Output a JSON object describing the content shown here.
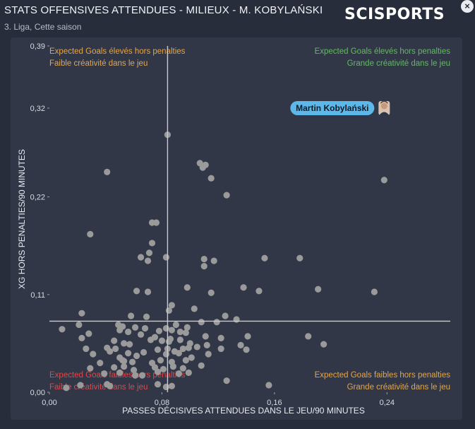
{
  "header": {
    "title": "STATS OFFENSIVES ATTENDUES - MILIEUX - M. KOBYLAŃSKI",
    "subtitle": "3. Liga, Cette saison",
    "brand": "SCISPORTS",
    "close_symbol": "×"
  },
  "colors": {
    "background": "#282d3c",
    "panel": "#313747",
    "point": "#9a9a9a",
    "reference_line": "#c8cad0",
    "highlight_label": "#5bb8e8",
    "top_left": "#e3a64a",
    "top_right": "#66b867",
    "bottom_left": "#e04848",
    "bottom_right": "#e3a64a"
  },
  "chart_data": {
    "type": "scatter",
    "xlabel": "PASSES DÉCISIVES ATTENDUES DANS LE JEU/90 MINUTES",
    "ylabel": "XG HORS PENALTIES/90 MINUTES",
    "xlim": [
      0,
      0.285
    ],
    "ylim": [
      0,
      0.39
    ],
    "x_ticks": [
      0.0,
      0.08,
      0.16,
      0.24
    ],
    "x_tick_labels": [
      "0,00",
      "0,08",
      "0,16",
      "0,24"
    ],
    "y_ticks": [
      0.0,
      0.11,
      0.22,
      0.32,
      0.39
    ],
    "y_tick_labels": [
      "0,00",
      "0,11",
      "0,22",
      "0,32",
      "0,39"
    ],
    "grid": false,
    "reference_lines": {
      "x": 0.084,
      "y": 0.08
    },
    "quadrant_labels": {
      "top_left": [
        "Expected Goals élevés hors penalties",
        "Faible créativité dans le jeu"
      ],
      "top_right": [
        "Expected Goals élevés hors penalties",
        "Grande créativité dans le jeu"
      ],
      "bottom_left": [
        "Expected Goals faibles hors penalties",
        "Faible créativité dans le jeu"
      ],
      "bottom_right": [
        "Expected Goals faibles hors penalties",
        "Grande créativité dans le jeu"
      ]
    },
    "highlight": {
      "name": "Martin Kobylański",
      "x": 0.238,
      "y": 0.32
    },
    "points": [
      [
        0.084,
        0.29
      ],
      [
        0.041,
        0.248
      ],
      [
        0.109,
        0.253
      ],
      [
        0.111,
        0.256
      ],
      [
        0.107,
        0.258
      ],
      [
        0.115,
        0.241
      ],
      [
        0.238,
        0.239
      ],
      [
        0.126,
        0.222
      ],
      [
        0.073,
        0.191
      ],
      [
        0.076,
        0.191
      ],
      [
        0.029,
        0.178
      ],
      [
        0.073,
        0.168
      ],
      [
        0.071,
        0.157
      ],
      [
        0.065,
        0.152
      ],
      [
        0.07,
        0.148
      ],
      [
        0.083,
        0.152
      ],
      [
        0.117,
        0.148
      ],
      [
        0.11,
        0.15
      ],
      [
        0.11,
        0.142
      ],
      [
        0.153,
        0.151
      ],
      [
        0.178,
        0.151
      ],
      [
        0.138,
        0.118
      ],
      [
        0.149,
        0.114
      ],
      [
        0.191,
        0.116
      ],
      [
        0.231,
        0.113
      ],
      [
        0.098,
        0.118
      ],
      [
        0.062,
        0.114
      ],
      [
        0.07,
        0.113
      ],
      [
        0.115,
        0.112
      ],
      [
        0.087,
        0.098
      ],
      [
        0.103,
        0.094
      ],
      [
        0.085,
        0.092
      ],
      [
        0.069,
        0.085
      ],
      [
        0.058,
        0.086
      ],
      [
        0.023,
        0.089
      ],
      [
        0.021,
        0.076
      ],
      [
        0.125,
        0.086
      ],
      [
        0.133,
        0.082
      ],
      [
        0.049,
        0.076
      ],
      [
        0.052,
        0.074
      ],
      [
        0.061,
        0.073
      ],
      [
        0.068,
        0.072
      ],
      [
        0.083,
        0.072
      ],
      [
        0.09,
        0.076
      ],
      [
        0.098,
        0.073
      ],
      [
        0.108,
        0.079
      ],
      [
        0.119,
        0.079
      ],
      [
        0.009,
        0.071
      ],
      [
        0.028,
        0.066
      ],
      [
        0.05,
        0.07
      ],
      [
        0.056,
        0.068
      ],
      [
        0.065,
        0.065
      ],
      [
        0.078,
        0.069
      ],
      [
        0.087,
        0.07
      ],
      [
        0.093,
        0.068
      ],
      [
        0.097,
        0.067
      ],
      [
        0.075,
        0.062
      ],
      [
        0.086,
        0.06
      ],
      [
        0.111,
        0.063
      ],
      [
        0.122,
        0.061
      ],
      [
        0.141,
        0.063
      ],
      [
        0.184,
        0.063
      ],
      [
        0.195,
        0.054
      ],
      [
        0.023,
        0.061
      ],
      [
        0.046,
        0.058
      ],
      [
        0.053,
        0.055
      ],
      [
        0.057,
        0.054
      ],
      [
        0.072,
        0.059
      ],
      [
        0.08,
        0.058
      ],
      [
        0.085,
        0.057
      ],
      [
        0.093,
        0.059
      ],
      [
        0.1,
        0.055
      ],
      [
        0.112,
        0.053
      ],
      [
        0.136,
        0.053
      ],
      [
        0.14,
        0.048
      ],
      [
        0.026,
        0.049
      ],
      [
        0.041,
        0.05
      ],
      [
        0.043,
        0.046
      ],
      [
        0.047,
        0.049
      ],
      [
        0.056,
        0.044
      ],
      [
        0.067,
        0.045
      ],
      [
        0.077,
        0.048
      ],
      [
        0.084,
        0.049
      ],
      [
        0.089,
        0.046
      ],
      [
        0.095,
        0.049
      ],
      [
        0.099,
        0.05
      ],
      [
        0.105,
        0.051
      ],
      [
        0.122,
        0.049
      ],
      [
        0.031,
        0.043
      ],
      [
        0.05,
        0.039
      ],
      [
        0.052,
        0.036
      ],
      [
        0.062,
        0.041
      ],
      [
        0.083,
        0.043
      ],
      [
        0.092,
        0.044
      ],
      [
        0.113,
        0.043
      ],
      [
        0.036,
        0.033
      ],
      [
        0.053,
        0.035
      ],
      [
        0.059,
        0.034
      ],
      [
        0.073,
        0.033
      ],
      [
        0.079,
        0.036
      ],
      [
        0.087,
        0.034
      ],
      [
        0.097,
        0.036
      ],
      [
        0.101,
        0.039
      ],
      [
        0.029,
        0.027
      ],
      [
        0.046,
        0.028
      ],
      [
        0.053,
        0.029
      ],
      [
        0.06,
        0.025
      ],
      [
        0.075,
        0.028
      ],
      [
        0.081,
        0.026
      ],
      [
        0.088,
        0.029
      ],
      [
        0.095,
        0.027
      ],
      [
        0.108,
        0.03
      ],
      [
        0.039,
        0.021
      ],
      [
        0.05,
        0.022
      ],
      [
        0.061,
        0.019
      ],
      [
        0.066,
        0.019
      ],
      [
        0.077,
        0.023
      ],
      [
        0.092,
        0.021
      ],
      [
        0.099,
        0.022
      ],
      [
        0.126,
        0.013
      ],
      [
        0.022,
        0.008
      ],
      [
        0.041,
        0.009
      ],
      [
        0.043,
        0.007
      ],
      [
        0.077,
        0.009
      ],
      [
        0.083,
        0.006
      ],
      [
        0.087,
        0.007
      ],
      [
        0.156,
        0.008
      ],
      [
        0.012,
        0.005
      ]
    ]
  }
}
